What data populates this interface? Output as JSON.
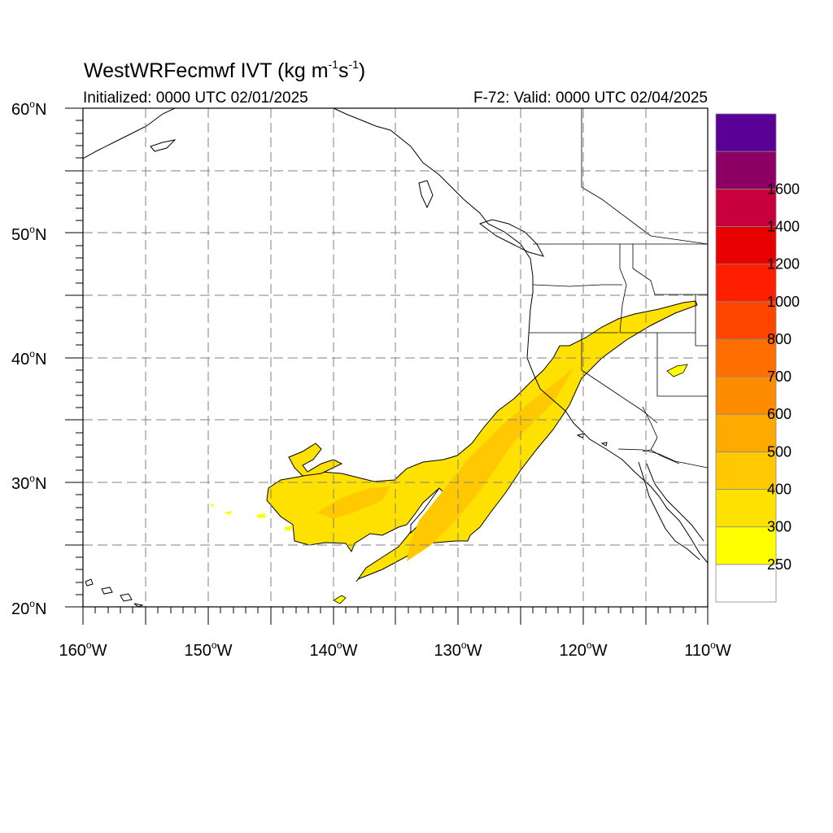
{
  "title": {
    "model": "WestWRFecmwf",
    "variable": "IVT",
    "units_open": "(kg m",
    "units_exp1": "-1",
    "units_mid": "s",
    "units_exp2": "-1",
    "units_close": ")"
  },
  "initialized": "Initialized: 0000 UTC 02/01/2025",
  "valid": "F-72: Valid: 0000 UTC 02/04/2025",
  "map": {
    "lat_labels": [
      "60",
      "50",
      "40",
      "30",
      "20"
    ],
    "lat_suffix": "N",
    "lon_labels": [
      "160",
      "150",
      "140",
      "130",
      "120",
      "110"
    ],
    "lon_suffix": "W",
    "degree_symbol": "o",
    "lat_range": [
      20,
      60
    ],
    "lon_range": [
      -160,
      -110
    ],
    "grid": "dashed every 5 degrees"
  },
  "colorbar": {
    "labels": [
      "250",
      "300",
      "400",
      "500",
      "600",
      "700",
      "800",
      "1000",
      "1200",
      "1400",
      "1600"
    ],
    "colors": [
      "#ffffff",
      "#ffff00",
      "#ffe100",
      "#ffc800",
      "#ffaa00",
      "#ff8c00",
      "#ff6e00",
      "#ff4600",
      "#ff1e00",
      "#e60000",
      "#c8003c",
      "#8c0064",
      "#5a0096"
    ]
  },
  "colors": {
    "ivt_250": "#ffff00",
    "ivt_300": "#ffe100",
    "ivt_400": "#ffc800",
    "ivt_500": "#ffaa00"
  }
}
